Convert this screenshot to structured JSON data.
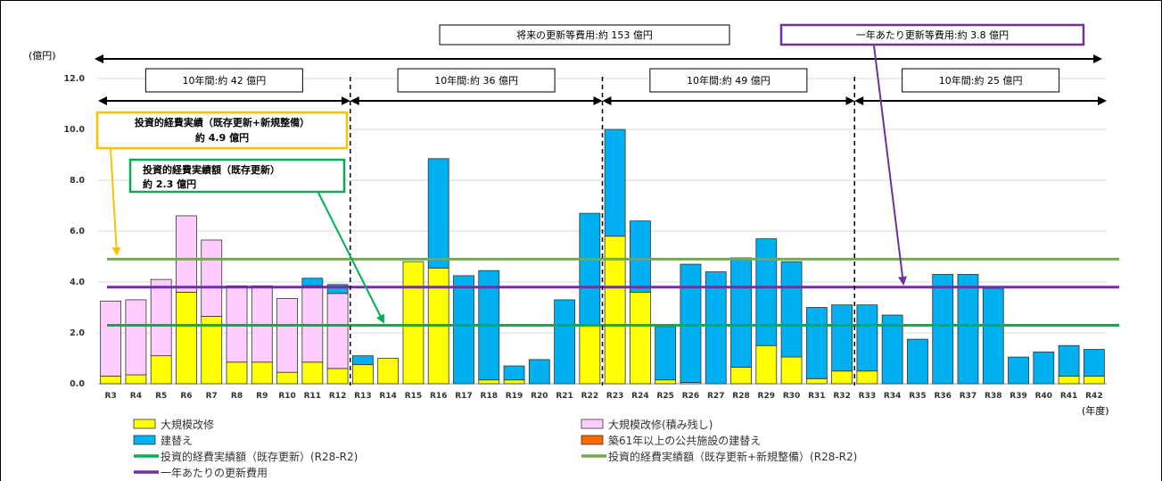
{
  "chart_data": {
    "type": "bar",
    "stacked": true,
    "ylabel": "(億円)",
    "xlabel": "(年度)",
    "ylim": [
      0,
      12
    ],
    "yticks": [
      "0.0",
      "2.0",
      "4.0",
      "6.0",
      "8.0",
      "10.0",
      "12.0"
    ],
    "categories": [
      "R3",
      "R4",
      "R5",
      "R6",
      "R7",
      "R8",
      "R9",
      "R10",
      "R11",
      "R12",
      "R13",
      "R14",
      "R15",
      "R16",
      "R17",
      "R18",
      "R19",
      "R20",
      "R21",
      "R22",
      "R23",
      "R24",
      "R25",
      "R26",
      "R27",
      "R28",
      "R29",
      "R30",
      "R31",
      "R32",
      "R33",
      "R34",
      "R35",
      "R36",
      "R37",
      "R38",
      "R39",
      "R40",
      "R41",
      "R42"
    ],
    "series": [
      {
        "name": "大規模改修",
        "color": "#ffff00",
        "values": [
          0.3,
          0.35,
          1.1,
          3.6,
          2.65,
          0.85,
          0.85,
          0.45,
          0.85,
          0.6,
          0.75,
          1.0,
          4.8,
          4.55,
          0,
          0.15,
          0.15,
          0,
          0,
          2.3,
          5.8,
          3.6,
          0.15,
          0.05,
          0,
          0.65,
          1.5,
          1.05,
          0.2,
          0.5,
          0.5,
          0,
          0,
          0,
          0,
          0,
          0,
          0,
          0.3,
          0.3
        ]
      },
      {
        "name": "大規模改修(積み残し)",
        "color": "#ffccff",
        "values": [
          2.95,
          2.95,
          3.0,
          3.0,
          3.0,
          3.0,
          3.0,
          2.9,
          3.0,
          2.95,
          0,
          0,
          0,
          0,
          0,
          0,
          0,
          0,
          0,
          0,
          0,
          0,
          0,
          0,
          0,
          0,
          0,
          0,
          0,
          0,
          0,
          0,
          0,
          0,
          0,
          0,
          0,
          0,
          0,
          0
        ]
      },
      {
        "name": "建替え",
        "color": "#00b0f0",
        "values": [
          0,
          0,
          0,
          0,
          0,
          0,
          0,
          0,
          0.3,
          0.35,
          0.35,
          0,
          0,
          4.3,
          4.25,
          4.3,
          0.55,
          0.95,
          3.3,
          4.4,
          4.2,
          2.8,
          2.1,
          4.65,
          4.4,
          4.3,
          4.2,
          3.75,
          2.8,
          2.6,
          2.6,
          2.7,
          1.75,
          4.3,
          4.3,
          3.75,
          1.05,
          1.25,
          1.2,
          1.05
        ]
      },
      {
        "name": "築61年以上の公共施設の建替え",
        "color": "#ff6600",
        "values": [
          0,
          0,
          0,
          0,
          0,
          0,
          0,
          0,
          0,
          0,
          0,
          0,
          0,
          0,
          0,
          0,
          0,
          0,
          0,
          0,
          0,
          0,
          0,
          0,
          0,
          0,
          0,
          0,
          0,
          0,
          0,
          0,
          0,
          0,
          0,
          0,
          0,
          0,
          0,
          0
        ]
      }
    ],
    "reference_lines": [
      {
        "name": "投資的経費実績額（既存更新）(R28-R2)",
        "value": 2.3,
        "color": "#00b050"
      },
      {
        "name": "投資的経費実績額（既存更新+新規整備）(R28-R2)",
        "value": 4.9,
        "color": "#70ad47"
      },
      {
        "name": "一年あたりの更新費用",
        "value": 3.8,
        "color": "#7030a0"
      }
    ],
    "period_labels": [
      "10年間:約 42 億円",
      "10年間:約 36 億円",
      "10年間:約 49 億円",
      "10年間:約 25 億円"
    ],
    "total_label": "将来の更新等費用:約 153 億円",
    "annual_label": "一年あたり更新等費用:約 3.8 億円",
    "annotation_total_line1": "投資的経費実績（既存更新+新規整備）",
    "annotation_total_line2": "約 4.9 億円",
    "annotation_existing_line1": "投資的経費実績額（既存更新）",
    "annotation_existing_line2": "約 2.3 億円"
  },
  "legend": [
    {
      "label": "大規模改修",
      "type": "box",
      "color": "#ffff00"
    },
    {
      "label": "大規模改修(積み残し)",
      "type": "box",
      "color": "#ffccff"
    },
    {
      "label": "建替え",
      "type": "box",
      "color": "#00b0f0"
    },
    {
      "label": "築61年以上の公共施設の建替え",
      "type": "box",
      "color": "#ff6600"
    },
    {
      "label": "投資的経費実績額（既存更新）(R28-R2)",
      "type": "line",
      "color": "#00b050"
    },
    {
      "label": "投資的経費実績額（既存更新+新規整備）(R28-R2)",
      "type": "line",
      "color": "#70ad47"
    },
    {
      "label": "一年あたりの更新費用",
      "type": "line",
      "color": "#7030a0"
    }
  ]
}
